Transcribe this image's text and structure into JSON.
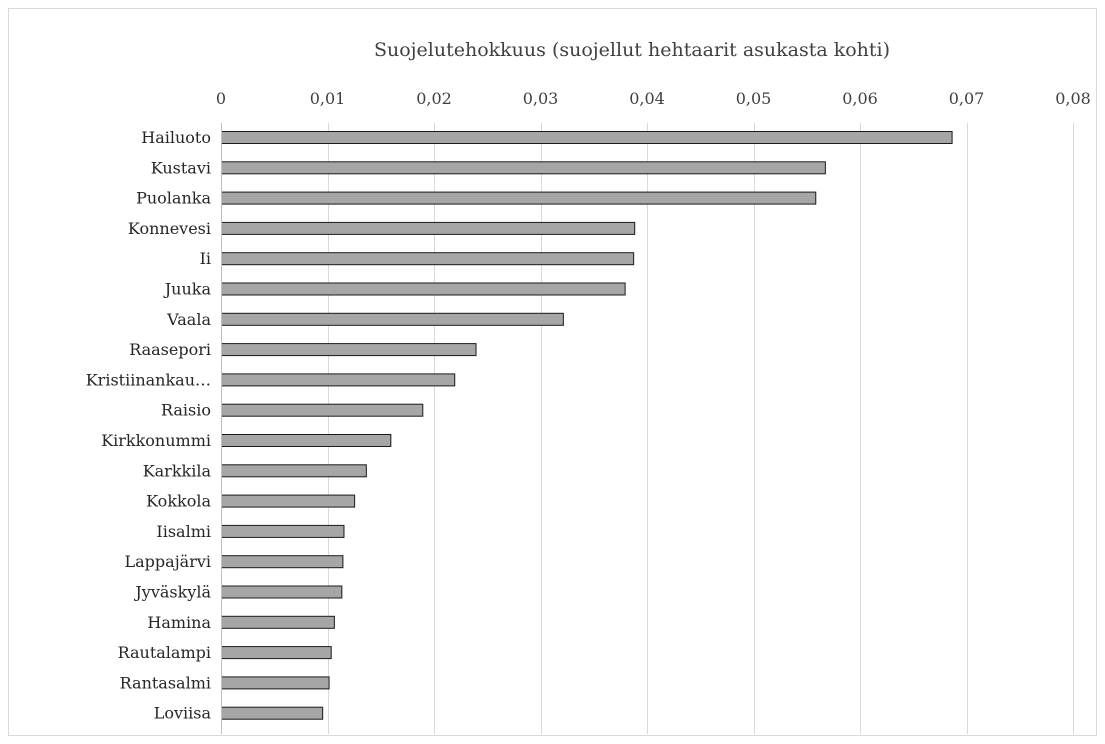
{
  "chart_data": {
    "type": "bar",
    "orientation": "horizontal",
    "title": "",
    "xlabel": "Suojelutehokkuus (suojellut hehtaarit asukasta kohti)",
    "ylabel": "",
    "xlim": [
      0,
      0.08
    ],
    "x_ticks": [
      "0",
      "0,01",
      "0,02",
      "0,03",
      "0,04",
      "0,05",
      "0,06",
      "0,07",
      "0,08"
    ],
    "x_tick_values": [
      0,
      0.01,
      0.02,
      0.03,
      0.04,
      0.05,
      0.06,
      0.07,
      0.08
    ],
    "x_axis_position": "top",
    "grid": true,
    "legend": "none",
    "bar_color": "#a6a6a6",
    "bar_edge_color": "#1a1a1a",
    "categories": [
      "Hailuoto",
      "Kustavi",
      "Puolanka",
      "Konnevesi",
      "Ii",
      "Juuka",
      "Vaala",
      "Raasepori",
      "Kristiinankau…",
      "Raisio",
      "Kirkkonummi",
      "Karkkila",
      "Kokkola",
      "Iisalmi",
      "Lappajärvi",
      "Jyväskylä",
      "Hamina",
      "Rautalampi",
      "Rantasalmi",
      "Loviisa"
    ],
    "values": [
      0.0686,
      0.0567,
      0.0558,
      0.0388,
      0.0387,
      0.0379,
      0.0321,
      0.0239,
      0.0219,
      0.0189,
      0.0159,
      0.0136,
      0.0125,
      0.0115,
      0.0114,
      0.0113,
      0.0106,
      0.0103,
      0.0101,
      0.0095
    ]
  }
}
